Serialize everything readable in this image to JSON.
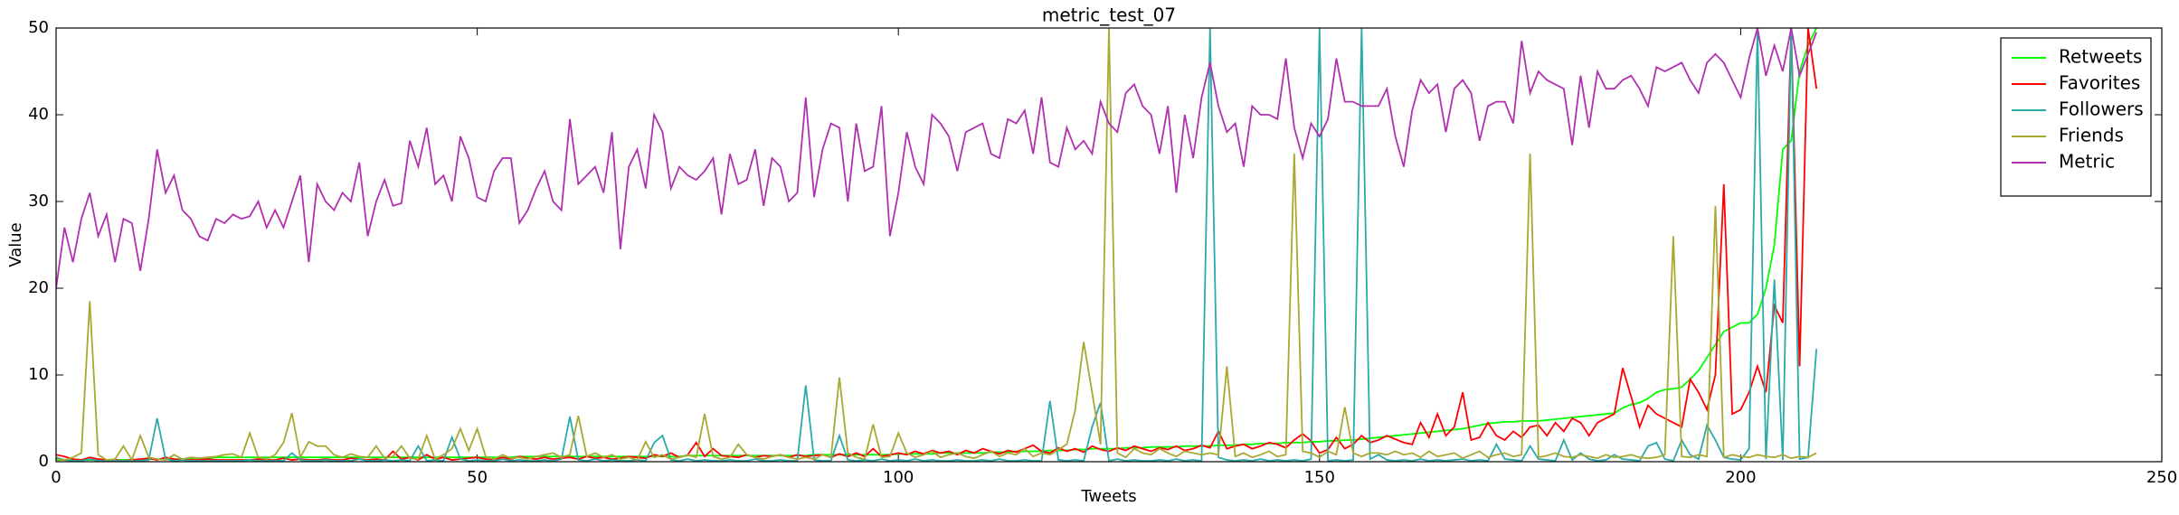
{
  "chart_data": {
    "type": "line",
    "title": "metric_test_07",
    "xlabel": "Tweets",
    "ylabel": "Value",
    "xlim": [
      0,
      250
    ],
    "xticks": [
      0,
      50,
      100,
      150,
      200,
      250
    ],
    "ylim": [
      0,
      50
    ],
    "yticks": [
      0,
      10,
      20,
      30,
      40,
      50
    ],
    "legend": "upper right",
    "x": [
      0,
      1,
      2,
      3,
      4,
      5,
      6,
      7,
      8,
      9,
      10,
      11,
      12,
      13,
      14,
      15,
      16,
      17,
      18,
      19,
      20,
      21,
      22,
      23,
      24,
      25,
      26,
      27,
      28,
      29,
      30,
      31,
      32,
      33,
      34,
      35,
      36,
      37,
      38,
      39,
      40,
      41,
      42,
      43,
      44,
      45,
      46,
      47,
      48,
      49,
      50,
      51,
      52,
      53,
      54,
      55,
      56,
      57,
      58,
      59,
      60,
      61,
      62,
      63,
      64,
      65,
      66,
      67,
      68,
      69,
      70,
      71,
      72,
      73,
      74,
      75,
      76,
      77,
      78,
      79,
      80,
      81,
      82,
      83,
      84,
      85,
      86,
      87,
      88,
      89,
      90,
      91,
      92,
      93,
      94,
      95,
      96,
      97,
      98,
      99,
      100,
      101,
      102,
      103,
      104,
      105,
      106,
      107,
      108,
      109,
      110,
      111,
      112,
      113,
      114,
      115,
      116,
      117,
      118,
      119,
      120,
      121,
      122,
      123,
      124,
      125,
      126,
      127,
      128,
      129,
      130,
      131,
      132,
      133,
      134,
      135,
      136,
      137,
      138,
      139,
      140,
      141,
      142,
      143,
      144,
      145,
      146,
      147,
      148,
      149,
      150,
      151,
      152,
      153,
      154,
      155,
      156,
      157,
      158,
      159,
      160,
      161,
      162,
      163,
      164,
      165,
      166,
      167,
      168,
      169,
      170,
      171,
      172,
      173,
      174,
      175,
      176,
      177,
      178,
      179,
      180,
      181,
      182,
      183,
      184,
      185,
      186,
      187,
      188,
      189,
      190,
      191,
      192,
      193,
      194,
      195,
      196,
      197,
      198,
      199,
      200,
      201,
      202,
      203,
      204,
      205,
      206,
      207,
      208,
      209
    ],
    "series": [
      {
        "name": "Retweets",
        "color": "#00ff00",
        "values": [
          0.2,
          0.2,
          0.2,
          0.2,
          0.2,
          0.2,
          0.2,
          0.2,
          0.2,
          0.2,
          0.2,
          0.3,
          0.3,
          0.3,
          0.3,
          0.3,
          0.4,
          0.4,
          0.4,
          0.5,
          0.5,
          0.5,
          0.5,
          0.5,
          0.5,
          0.5,
          0.5,
          0.5,
          0.5,
          0.5,
          0.5,
          0.5,
          0.5,
          0.5,
          0.5,
          0.5,
          0.5,
          0.5,
          0.5,
          0.5,
          0.5,
          0.5,
          0.5,
          0.5,
          0.5,
          0.5,
          0.5,
          0.5,
          0.5,
          0.5,
          0.5,
          0.5,
          0.5,
          0.5,
          0.5,
          0.6,
          0.6,
          0.6,
          0.6,
          0.6,
          0.6,
          0.6,
          0.6,
          0.6,
          0.6,
          0.6,
          0.6,
          0.6,
          0.6,
          0.6,
          0.6,
          0.6,
          0.6,
          0.6,
          0.6,
          0.7,
          0.7,
          0.7,
          0.7,
          0.7,
          0.7,
          0.7,
          0.7,
          0.7,
          0.7,
          0.7,
          0.7,
          0.7,
          0.7,
          0.7,
          0.8,
          0.8,
          0.8,
          0.8,
          0.8,
          0.8,
          0.8,
          0.8,
          0.8,
          0.8,
          0.9,
          0.9,
          0.9,
          0.9,
          0.9,
          1.0,
          1.0,
          1.0,
          1.0,
          1.0,
          1.0,
          1.1,
          1.1,
          1.1,
          1.2,
          1.2,
          1.2,
          1.2,
          1.3,
          1.3,
          1.3,
          1.4,
          1.4,
          1.5,
          1.5,
          1.5,
          1.5,
          1.6,
          1.6,
          1.6,
          1.7,
          1.7,
          1.7,
          1.7,
          1.8,
          1.8,
          1.8,
          1.8,
          1.9,
          1.9,
          1.9,
          2.0,
          2.0,
          2.1,
          2.1,
          2.1,
          2.2,
          2.2,
          2.2,
          2.3,
          2.3,
          2.4,
          2.4,
          2.5,
          2.5,
          2.6,
          2.7,
          2.8,
          2.9,
          3.0,
          3.1,
          3.2,
          3.3,
          3.4,
          3.5,
          3.6,
          3.7,
          3.8,
          4.0,
          4.2,
          4.4,
          4.5,
          4.6,
          4.6,
          4.7,
          4.7,
          4.7,
          4.8,
          4.9,
          5.0,
          5.1,
          5.2,
          5.3,
          5.4,
          5.5,
          5.6,
          6.2,
          6.6,
          6.8,
          7.3,
          8.0,
          8.3,
          8.4,
          8.6,
          9.5,
          10.5,
          12,
          13.5,
          15,
          15.5,
          16,
          16,
          17,
          20,
          25,
          36,
          37,
          45,
          48,
          50
        ]
      },
      {
        "name": "Favorites",
        "color": "#ff0000",
        "values": [
          0.8,
          0.6,
          0.3,
          0.2,
          0.5,
          0.3,
          0.2,
          0.2,
          0.1,
          0.2,
          0.3,
          0.4,
          0.2,
          0.5,
          0.3,
          0.2,
          0.2,
          0.2,
          0.3,
          0.2,
          0.2,
          0.2,
          0.2,
          0.2,
          0.3,
          0.2,
          0.2,
          0.4,
          0.2,
          0.3,
          0.2,
          0.2,
          0.3,
          0.2,
          0.2,
          0.4,
          0.3,
          0.2,
          0.3,
          0.2,
          1.2,
          0.3,
          0.5,
          0.2,
          0.8,
          0.3,
          0.5,
          0.2,
          0.3,
          0.4,
          0.5,
          0.3,
          0.2,
          0.5,
          0.3,
          0.6,
          0.4,
          0.3,
          0.5,
          0.3,
          0.4,
          0.5,
          0.3,
          0.6,
          0.4,
          0.5,
          0.3,
          0.4,
          0.6,
          0.5,
          0.4,
          0.8,
          0.6,
          1.0,
          0.5,
          0.8,
          2.2,
          0.6,
          1.5,
          0.7,
          0.6,
          0.5,
          0.8,
          0.5,
          0.7,
          0.6,
          0.8,
          0.5,
          0.8,
          0.6,
          0.7,
          0.8,
          0.5,
          0.9,
          0.6,
          1.0,
          0.6,
          1.5,
          0.6,
          0.8,
          1.0,
          0.8,
          1.2,
          0.9,
          1.3,
          1.0,
          1.2,
          0.8,
          1.3,
          1.0,
          1.5,
          1.2,
          0.9,
          1.3,
          1.1,
          1.5,
          1.9,
          1.2,
          1.0,
          1.6,
          1.2,
          1.5,
          1.1,
          1.8,
          1.4,
          1.2,
          1.6,
          1.3,
          1.8,
          1.5,
          1.2,
          1.6,
          1.4,
          1.8,
          1.3,
          1.5,
          1.9,
          1.6,
          3.5,
          1.5,
          1.8,
          2.0,
          1.5,
          1.8,
          2.2,
          2.0,
          1.6,
          2.5,
          3.2,
          2.4,
          1.0,
          1.4,
          2.8,
          1.5,
          2.0,
          3.0,
          2.2,
          2.5,
          3.0,
          2.6,
          2.2,
          2.0,
          4.5,
          2.8,
          5.5,
          3.0,
          4.0,
          8.0,
          2.5,
          2.8,
          4.5,
          3.0,
          2.5,
          3.5,
          2.8,
          4.0,
          4.2,
          3.0,
          4.5,
          3.5,
          5.0,
          4.5,
          3.0,
          4.5,
          5.0,
          5.5,
          10.8,
          7.5,
          4.0,
          6.5,
          5.5,
          5.0,
          4.5,
          4.0,
          9.5,
          8.0,
          6.0,
          10.0,
          32,
          5.5,
          6,
          8,
          11,
          8,
          18,
          16,
          50,
          11,
          50,
          43
        ]
      },
      {
        "name": "Followers",
        "color": "#2aaaa8",
        "values": [
          0.5,
          0.2,
          0.1,
          0.1,
          0.3,
          0.1,
          0.1,
          0.1,
          0.1,
          0.1,
          0.1,
          0.2,
          5,
          0.3,
          0.1,
          0.2,
          0.1,
          0.1,
          0.1,
          0.1,
          0.1,
          0.1,
          0.1,
          0.2,
          0.1,
          0.1,
          0.1,
          0.1,
          1.0,
          0.2,
          0.1,
          0.1,
          0.2,
          0.1,
          0.1,
          0.1,
          0.3,
          0.1,
          0.1,
          0.2,
          0.1,
          0.2,
          0.1,
          1.8,
          0.1,
          0.2,
          0.1,
          2.8,
          0.3,
          0.1,
          0.2,
          0.1,
          0.1,
          0.3,
          0.1,
          0.2,
          0.1,
          0.1,
          0.2,
          0.1,
          0.3,
          5.2,
          0.2,
          0.1,
          0.3,
          0.1,
          0.2,
          0.1,
          0.1,
          0.2,
          0.1,
          2.2,
          3.0,
          0.2,
          0.1,
          0.3,
          0.1,
          0.2,
          0.1,
          0.1,
          0.2,
          0.1,
          0.1,
          0.3,
          0.1,
          0.1,
          0.2,
          0.1,
          0.1,
          8.8,
          0.2,
          0.1,
          0.1,
          3.0,
          0.2,
          0.1,
          0.2,
          0.1,
          0.3,
          0.1,
          0.2,
          0.1,
          0.3,
          0.1,
          0.2,
          0.1,
          0.1,
          0.2,
          0.1,
          0.1,
          0.2,
          0.1,
          0.3,
          0.1,
          0.1,
          0.2,
          0.1,
          0.1,
          7.0,
          0.2,
          0.1,
          0.2,
          0.1,
          4.0,
          6.8,
          0.1,
          0.3,
          0.1,
          0.2,
          0.1,
          0.1,
          0.2,
          0.1,
          0.3,
          0.1,
          0.2,
          0.1,
          50,
          0.5,
          0.2,
          0.1,
          0.2,
          0.1,
          0.3,
          0.1,
          0.2,
          0.1,
          0.2,
          0.1,
          0.3,
          50,
          0.1,
          0.2,
          0.1,
          0.2,
          50,
          0.3,
          0.8,
          0.2,
          0.1,
          0.2,
          0.1,
          0.3,
          0.1,
          0.2,
          0.1,
          0.2,
          0.3,
          0.1,
          0.2,
          0.1,
          2.0,
          0.3,
          0.2,
          0.1,
          1.8,
          0.3,
          0.2,
          0.1,
          2.5,
          0.2,
          1.0,
          0.3,
          0.1,
          0.2,
          0.8,
          0.3,
          0.2,
          0.1,
          1.8,
          2.2,
          0.3,
          0.1,
          2.5,
          0.8,
          0.3,
          4.2,
          2.5,
          0.5,
          0.3,
          0.2,
          1.5,
          50,
          0.3,
          21,
          0.2,
          50,
          0.3,
          0.5,
          13
        ]
      },
      {
        "name": "Friends",
        "color": "#a8a832",
        "values": [
          0.3,
          0.2,
          0.5,
          1.0,
          18.5,
          0.8,
          0.2,
          0.3,
          1.8,
          0.2,
          3.0,
          0.5,
          0.3,
          0.2,
          0.8,
          0.3,
          0.5,
          0.4,
          0.5,
          0.6,
          0.8,
          0.9,
          0.5,
          3.3,
          0.5,
          0.3,
          0.8,
          2.2,
          5.6,
          0.5,
          2.3,
          1.8,
          1.8,
          0.8,
          0.5,
          0.9,
          0.6,
          0.5,
          1.8,
          0.4,
          0.6,
          1.8,
          0.4,
          0.3,
          3.0,
          0.3,
          0.8,
          1.5,
          3.8,
          1.3,
          3.8,
          0.6,
          0.3,
          0.8,
          0.4,
          0.5,
          0.3,
          0.6,
          0.8,
          1.0,
          0.5,
          0.8,
          5.3,
          0.6,
          1.0,
          0.5,
          0.8,
          0.3,
          0.5,
          0.2,
          2.3,
          0.5,
          0.8,
          0.3,
          0.5,
          0.8,
          0.5,
          5.5,
          0.6,
          0.3,
          0.5,
          2.0,
          0.8,
          0.5,
          0.3,
          0.6,
          0.8,
          0.5,
          0.3,
          0.5,
          0.3,
          0.8,
          0.5,
          9.7,
          1.0,
          0.5,
          0.3,
          4.3,
          0.5,
          0.6,
          3.3,
          1.0,
          0.5,
          0.8,
          1.2,
          0.5,
          0.8,
          1.0,
          0.6,
          0.4,
          0.8,
          1.2,
          0.6,
          1.0,
          0.8,
          1.5,
          0.6,
          1.0,
          0.8,
          1.4,
          2.0,
          6.0,
          13.8,
          8.0,
          2.0,
          50,
          1.0,
          0.5,
          1.5,
          1.0,
          0.8,
          1.5,
          1.0,
          0.6,
          1.2,
          1.0,
          0.8,
          1.0,
          0.8,
          11,
          0.6,
          1.0,
          0.5,
          0.8,
          1.2,
          0.6,
          0.8,
          35.5,
          1.2,
          1.0,
          0.5,
          1.2,
          0.8,
          6.3,
          1.0,
          0.6,
          1.0,
          1.0,
          0.8,
          1.2,
          0.8,
          1.0,
          0.5,
          1.2,
          0.6,
          0.8,
          1.0,
          0.4,
          0.8,
          1.2,
          0.5,
          0.8,
          1.0,
          0.6,
          0.8,
          35.5,
          0.5,
          0.7,
          1.0,
          0.6,
          0.5,
          0.8,
          0.6,
          0.4,
          0.8,
          0.5,
          0.6,
          0.8,
          0.5,
          0.4,
          0.5,
          0.8,
          26,
          0.6,
          0.5,
          0.8,
          0.6,
          29.5,
          0.5,
          0.8,
          0.6,
          0.5,
          0.8,
          0.6,
          0.5,
          0.8,
          0.4,
          0.6,
          0.5,
          1.0
        ]
      },
      {
        "name": "Metric",
        "color": "#b030b0",
        "values": [
          20,
          27,
          23,
          28,
          31,
          26,
          28.5,
          23,
          28,
          27.5,
          22,
          28,
          36,
          31,
          33,
          29,
          28,
          26,
          25.5,
          28,
          27.5,
          28.5,
          28,
          28.3,
          30,
          27,
          29,
          27,
          30,
          33,
          23,
          32,
          30,
          29,
          31,
          30,
          34.5,
          26,
          30,
          32.5,
          29.5,
          29.8,
          37,
          34,
          38.5,
          32,
          33,
          30,
          37.5,
          35,
          30.5,
          30,
          33.5,
          35,
          35,
          27.5,
          29,
          31.5,
          33.5,
          30,
          29,
          39.5,
          32,
          33,
          34,
          31,
          38,
          24.5,
          34,
          36,
          31.5,
          40,
          38,
          31.5,
          34,
          33,
          32.5,
          33.5,
          35,
          28.5,
          35.5,
          32,
          32.5,
          36,
          29.5,
          35,
          34,
          30,
          31,
          42,
          30.5,
          36,
          39,
          38.5,
          30,
          39,
          33.5,
          34,
          41,
          26,
          31,
          38,
          34,
          32,
          40,
          39,
          37.5,
          33.5,
          38,
          38.5,
          39,
          35.5,
          35,
          39.5,
          39,
          40.5,
          35.5,
          42,
          34.5,
          34,
          38.5,
          36,
          37,
          35.5,
          41.5,
          39,
          38,
          42.5,
          43.5,
          41,
          40,
          35.5,
          41,
          31,
          40,
          35,
          42,
          46,
          41,
          38,
          39,
          34,
          41,
          40,
          40,
          39.5,
          46.5,
          38.5,
          35,
          39,
          37.5,
          39.5,
          46.5,
          41.5,
          41.5,
          41,
          41,
          41,
          43,
          37.5,
          34,
          40.5,
          44,
          42.5,
          43.5,
          38,
          43,
          44,
          42.5,
          37,
          41,
          41.5,
          41.5,
          39,
          48.5,
          42.5,
          45,
          44,
          43.5,
          43,
          36.5,
          44.5,
          38.5,
          45,
          43,
          43,
          44,
          44.5,
          43,
          41,
          45.5,
          45,
          45.5,
          46,
          44,
          42.5,
          46,
          47,
          46,
          44,
          42,
          46.5,
          50,
          44.5,
          48,
          45,
          50,
          44.5,
          47,
          49.5
        ]
      }
    ]
  }
}
